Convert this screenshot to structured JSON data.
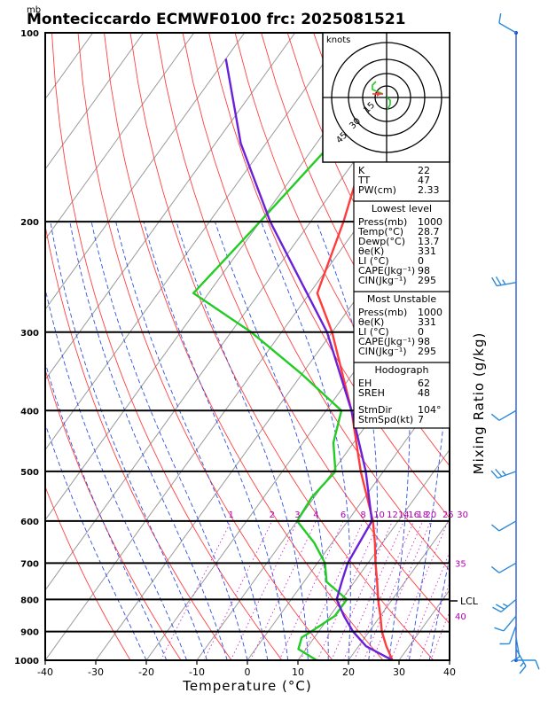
{
  "header": {
    "unit_top": "mb",
    "title": "Monteciccardo ECMWF0100  frc: 2025081521"
  },
  "chart_data": {
    "type": "skew-t log-p sounding",
    "xlabel": "Temperature (°C)",
    "ylabel_right": "Mixing Ratio  (g/kg)",
    "x_ticks": [
      -40,
      -30,
      -20,
      -10,
      0,
      10,
      20,
      30,
      40
    ],
    "pressure_levels": [
      100,
      200,
      300,
      400,
      500,
      600,
      700,
      800,
      900,
      1000
    ],
    "xlim": [
      -40,
      40
    ],
    "plim": [
      1000,
      100
    ],
    "mixing_ratio_labels": [
      "1",
      "2",
      "3",
      "4",
      "6",
      "8",
      "10",
      "12",
      "14",
      "16",
      "18",
      "20",
      "25",
      "30",
      "35",
      "40"
    ],
    "lcl_label": "LCL",
    "lcl_pressure": 800,
    "temperature": {
      "name": "Temperature",
      "p": [
        1000,
        950,
        900,
        850,
        800,
        750,
        700,
        650,
        600,
        500,
        400,
        300,
        260,
        200,
        150,
        100
      ],
      "t": [
        28.7,
        25.5,
        22.5,
        20,
        17.2,
        14.5,
        11.5,
        8.5,
        5.0,
        -4.5,
        -15,
        -30,
        -38.5,
        -43.5,
        -50,
        -56
      ]
    },
    "dewpoint": {
      "name": "Dewpoint",
      "p": [
        1000,
        960,
        920,
        900,
        850,
        800,
        750,
        700,
        650,
        600,
        550,
        500,
        450,
        400,
        350,
        300,
        260,
        200,
        150,
        100
      ],
      "t": [
        13.7,
        8.5,
        7.5,
        8.5,
        11.0,
        11.0,
        4.5,
        1.5,
        -3.5,
        -10,
        -10.5,
        -9.5,
        -14,
        -17,
        -30,
        -46,
        -63,
        -60,
        -57,
        -53
      ]
    },
    "parcel": {
      "name": "Parcel",
      "p": [
        1000,
        950,
        900,
        850,
        800,
        750,
        700,
        600,
        500,
        400,
        300,
        200,
        150,
        110
      ],
      "t": [
        28.7,
        21.5,
        16.8,
        12.8,
        9.0,
        7.5,
        6.0,
        4.8,
        -3.5,
        -15,
        -31,
        -58,
        -75,
        -90
      ]
    },
    "wind_barbs": [
      {
        "p": 100,
        "dir": 300,
        "spd": 10
      },
      {
        "p": 250,
        "dir": 260,
        "spd": 15
      },
      {
        "p": 400,
        "dir": 240,
        "spd": 10
      },
      {
        "p": 500,
        "dir": 250,
        "spd": 15
      },
      {
        "p": 600,
        "dir": 240,
        "spd": 10
      },
      {
        "p": 700,
        "dir": 240,
        "spd": 10
      },
      {
        "p": 800,
        "dir": 230,
        "spd": 15
      },
      {
        "p": 850,
        "dir": 220,
        "spd": 10
      },
      {
        "p": 880,
        "dir": 200,
        "spd": 10
      },
      {
        "p": 920,
        "dir": 170,
        "spd": 10
      },
      {
        "p": 960,
        "dir": 150,
        "spd": 5
      },
      {
        "p": 1000,
        "dir": 90,
        "spd": 10
      }
    ]
  },
  "hodograph": {
    "units_label": "knots",
    "ring_labels": [
      "15",
      "30",
      "45"
    ]
  },
  "indices": {
    "general": [
      {
        "label": "K",
        "value": "22"
      },
      {
        "label": "TT",
        "value": "47"
      },
      {
        "label": "PW(cm)",
        "value": "2.33"
      }
    ],
    "lowest_level": {
      "heading": "Lowest level",
      "rows": [
        {
          "label": "Press(mb)",
          "value": "1000"
        },
        {
          "label": "Temp(°C)",
          "value": "28.7"
        },
        {
          "label": "Dewp(°C)",
          "value": "13.7"
        },
        {
          "label": "θe(K)",
          "value": "331"
        },
        {
          "label": "LI (°C)",
          "value": "0"
        },
        {
          "label": "CAPE(Jkg⁻¹)",
          "value": "98"
        },
        {
          "label": "CIN(Jkg⁻¹)",
          "value": "295"
        }
      ]
    },
    "most_unstable": {
      "heading": "Most Unstable",
      "rows": [
        {
          "label": "Press(mb)",
          "value": "1000"
        },
        {
          "label": "θe(K)",
          "value": "331"
        },
        {
          "label": "LI (°C)",
          "value": "0"
        },
        {
          "label": "CAPE(Jkg⁻¹)",
          "value": "98"
        },
        {
          "label": "CIN(Jkg⁻¹)",
          "value": "295"
        }
      ]
    },
    "hodograph": {
      "heading": "Hodograph",
      "rows": [
        {
          "label": "EH",
          "value": "62"
        },
        {
          "label": "SREH",
          "value": "48"
        },
        {
          "label": "StmDir",
          "value": "104°"
        },
        {
          "label": "StmSpd(kt)",
          "value": "7"
        }
      ]
    }
  },
  "colors": {
    "temperature": "#ff3b3b",
    "dewpoint": "#22cc22",
    "parcel": "#6a20d8",
    "dry_adiabat": "#ff4040",
    "moist_adiabat": "#3050e0",
    "isotherm": "#9a9a9a",
    "mixing_ratio": "#cc30cc",
    "wind": "#2a8ad8"
  }
}
